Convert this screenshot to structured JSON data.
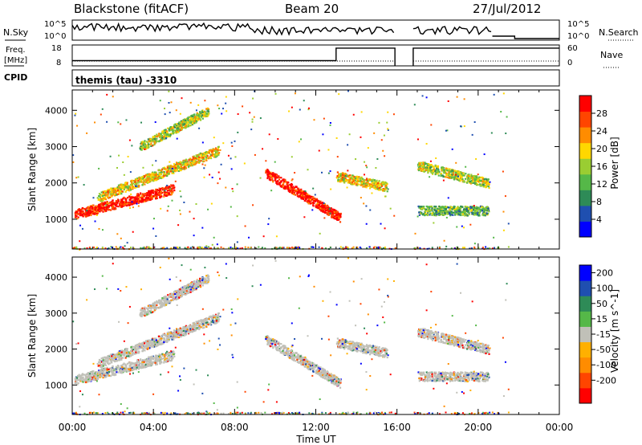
{
  "header": {
    "station": "Blackstone (fitACF)",
    "beam": "Beam 20",
    "date": "27/Jul/2012"
  },
  "noise_panel": {
    "left_label": "N.Sky",
    "right_label": "N.Search",
    "tick_top": "10^5",
    "tick_bottom": "10^0"
  },
  "freq_panel": {
    "left_label_1": "Freq.",
    "left_label_2": "[MHz]",
    "left_tick_top": "18",
    "left_tick_bottom": "8",
    "right_label": "Nave",
    "right_tick_top": "60",
    "right_tick_bottom": "0"
  },
  "cpid": {
    "label": "CPID",
    "value": "themis (tau) -3310"
  },
  "colors": {
    "power_scale": [
      "#0000ff",
      "#1f4fb0",
      "#2e8b57",
      "#55b848",
      "#9acd32",
      "#ffd700",
      "#ff8c00",
      "#ff4500",
      "#ff0000"
    ],
    "velocity_scale": [
      "#0000ff",
      "#1f4fb0",
      "#2e8b57",
      "#55b848",
      "#c0c0b8",
      "#ffb000",
      "#ff8c00",
      "#ff4500",
      "#ff0000"
    ],
    "ground_scatter": "#c0c0b8"
  },
  "chart_data": [
    {
      "type": "heatmap",
      "title": "Power",
      "xlabel": "Time UT",
      "ylabel": "Slant Range [km]",
      "x_ticks": [
        "00:00",
        "04:00",
        "08:00",
        "12:00",
        "16:00",
        "20:00",
        "00:00"
      ],
      "y_ticks": [
        1000,
        2000,
        3000,
        4000
      ],
      "ylim": [
        180,
        4560
      ],
      "xlim_hours": [
        0,
        24
      ],
      "colorbar": {
        "label": "Power [dB]",
        "ticks": [
          4,
          8,
          12,
          16,
          20,
          24,
          28
        ],
        "range": [
          0,
          32
        ]
      },
      "features": [
        {
          "name": "main-band",
          "start_hr": 0.1,
          "end_hr": 5.0,
          "start_km": 1150,
          "end_km": 1850,
          "color_level": 8
        },
        {
          "name": "upper-arc",
          "start_hr": 1.2,
          "end_hr": 7.2,
          "start_km": 1600,
          "end_km": 2900,
          "color_level": 5
        },
        {
          "name": "high-arc",
          "start_hr": 3.3,
          "end_hr": 6.7,
          "start_km": 3000,
          "end_km": 4000,
          "color_level": 4
        },
        {
          "name": "evening-descent",
          "start_hr": 9.5,
          "end_hr": 13.2,
          "start_km": 2300,
          "end_km": 1050,
          "color_level": 8
        },
        {
          "name": "post-13-band",
          "start_hr": 13.0,
          "end_hr": 15.5,
          "start_km": 2200,
          "end_km": 1900,
          "color_level": 5
        },
        {
          "name": "post-17-band",
          "start_hr": 17.0,
          "end_hr": 20.5,
          "start_km": 2500,
          "end_km": 2000,
          "color_level": 4
        },
        {
          "name": "post-17-low",
          "start_hr": 17.0,
          "end_hr": 20.5,
          "start_km": 1250,
          "end_km": 1250,
          "color_level": 3
        }
      ],
      "data_gap_hours": [
        15.9,
        16.8
      ]
    },
    {
      "type": "heatmap",
      "title": "Velocity",
      "xlabel": "Time UT",
      "ylabel": "Slant Range [km]",
      "x_ticks": [
        "00:00",
        "04:00",
        "08:00",
        "12:00",
        "16:00",
        "20:00",
        "00:00"
      ],
      "y_ticks": [
        1000,
        2000,
        3000,
        4000
      ],
      "ylim": [
        180,
        4560
      ],
      "xlim_hours": [
        0,
        24
      ],
      "colorbar": {
        "label": "Velocity [m s^-1]",
        "ticks": [
          200,
          100,
          50,
          15,
          -15,
          -50,
          -100,
          -200
        ],
        "range": [
          -250,
          250
        ]
      },
      "ground_scatter_dominant": true,
      "data_gap_hours": [
        15.9,
        16.8
      ]
    }
  ],
  "noise_series": {
    "n_sky_segments": [
      [
        0,
        15.9
      ],
      [
        16.8,
        20.7
      ]
    ],
    "n_search_after_hr": 20.7
  },
  "frequency_series": {
    "freq_step_hr": 13.0,
    "freq_before_mhz": 10.5,
    "freq_after_mhz": 16.5,
    "data_gap_hours": [
      15.9,
      16.8
    ]
  }
}
